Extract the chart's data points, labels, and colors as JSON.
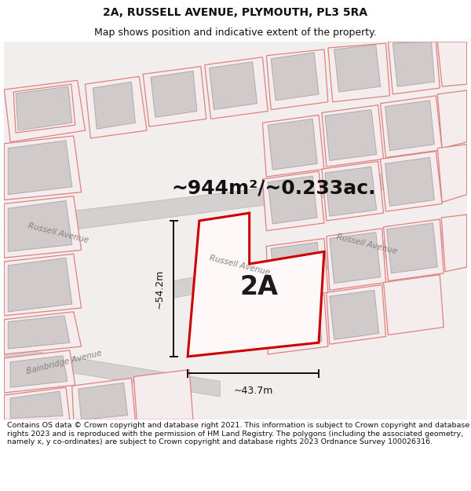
{
  "title_line1": "2A, RUSSELL AVENUE, PLYMOUTH, PL3 5RA",
  "title_line2": "Map shows position and indicative extent of the property.",
  "footer_text": "Contains OS data © Crown copyright and database right 2021. This information is subject to Crown copyright and database rights 2023 and is reproduced with the permission of HM Land Registry. The polygons (including the associated geometry, namely x, y co-ordinates) are subject to Crown copyright and database rights 2023 Ordnance Survey 100026316.",
  "area_label": "~944m²/~0.233ac.",
  "property_label": "2A",
  "dim_horizontal": "~43.7m",
  "dim_vertical": "~54.2m",
  "bg_color": "#ffffff",
  "map_bg": "#f2eeee",
  "road_fill": "#d5d0d0",
  "road_edge": "#b8b4b4",
  "plot_edge": "#e08080",
  "plot_fill": "#f5eded",
  "bld_fill": "#d0caca",
  "bld_edge": "#b0aaaa",
  "prop_color": "#cc0000",
  "prop_fill": "#fff8f8",
  "prop_lw": 2.2,
  "dim_color": "#111111",
  "road_label_color": "#888080",
  "title_color": "#111111",
  "footer_color": "#111111",
  "title_fs": 10,
  "subtitle_fs": 9,
  "area_fs": 18,
  "prop_label_fs": 24,
  "dim_fs": 9,
  "road_label_fs": 7.5
}
